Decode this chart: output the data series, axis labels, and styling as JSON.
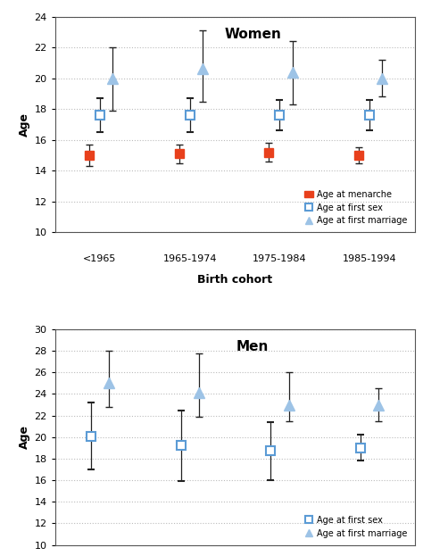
{
  "categories": [
    "<1965",
    "1965-1974",
    "1975-1984",
    "1985-1994"
  ],
  "x_positions": [
    0,
    1,
    2,
    3
  ],
  "women": {
    "title": "Women",
    "ylim": [
      10,
      24
    ],
    "yticks": [
      10,
      12,
      14,
      16,
      18,
      20,
      22,
      24
    ],
    "menarche": {
      "y": [
        15.0,
        15.1,
        15.2,
        15.0
      ],
      "yerr_low": [
        0.7,
        0.6,
        0.6,
        0.5
      ],
      "yerr_high": [
        0.7,
        0.6,
        0.6,
        0.5
      ]
    },
    "first_sex": {
      "y": [
        17.6,
        17.6,
        17.6,
        17.6
      ],
      "yerr_low": [
        1.1,
        1.1,
        1.0,
        1.0
      ],
      "yerr_high": [
        1.1,
        1.1,
        1.0,
        1.0
      ]
    },
    "first_marriage": {
      "y": [
        20.0,
        20.6,
        20.4,
        20.0
      ],
      "yerr_low": [
        2.1,
        2.1,
        2.1,
        1.2
      ],
      "yerr_high": [
        2.0,
        2.5,
        2.0,
        1.2
      ]
    }
  },
  "men": {
    "title": "Men",
    "ylim": [
      10,
      30
    ],
    "yticks": [
      10,
      12,
      14,
      16,
      18,
      20,
      22,
      24,
      26,
      28,
      30
    ],
    "first_sex": {
      "y": [
        20.1,
        19.2,
        18.7,
        19.0
      ],
      "yerr_low": [
        3.1,
        3.3,
        2.7,
        1.2
      ],
      "yerr_high": [
        3.1,
        3.3,
        2.7,
        1.2
      ]
    },
    "first_marriage": {
      "y": [
        25.0,
        24.1,
        23.0,
        23.0
      ],
      "yerr_low": [
        2.2,
        2.2,
        1.5,
        1.5
      ],
      "yerr_high": [
        3.0,
        3.7,
        3.0,
        1.5
      ]
    }
  },
  "colors": {
    "menarche": "#e8401c",
    "first_sex": "#5b9bd5",
    "first_marriage": "#9dc3e6",
    "grid": "#bbbbbb",
    "bg": "#ffffff",
    "panel_bg": "#f2f2f2"
  },
  "xlabel": "Birth cohort",
  "ylabel": "Age"
}
